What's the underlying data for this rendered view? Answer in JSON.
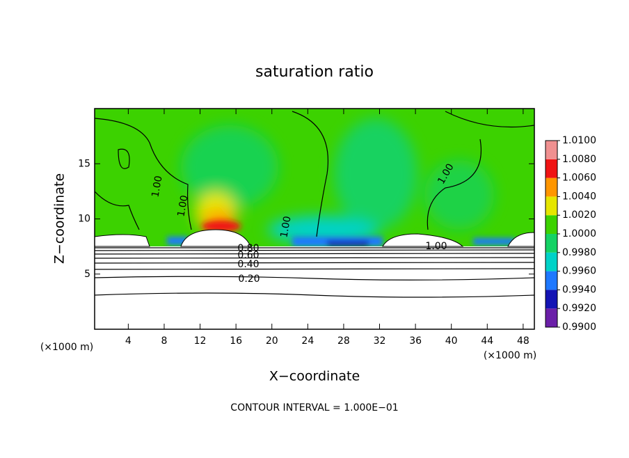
{
  "chart_data": {
    "type": "contour",
    "title": "saturation ratio",
    "xlabel": "X−coordinate",
    "ylabel": "Z−coordinate",
    "x_unit": "(×1000 m)",
    "y_unit": "(×1000 m)",
    "footer": "CONTOUR INTERVAL = 1.000E−01",
    "xlim": [
      0.25,
      49.25
    ],
    "xticks": [
      4,
      8,
      12,
      16,
      20,
      24,
      28,
      32,
      36,
      40,
      44,
      48
    ],
    "ylim": [
      0,
      20
    ],
    "yticks": [
      5,
      10,
      15
    ],
    "contour_labels": [
      "1.00",
      "1.00",
      "1.00",
      "1.00",
      "1.00",
      "0.80",
      "0.60",
      "0.40",
      "0.20"
    ],
    "colorbar": {
      "ticks": [
        {
          "value": 0.99,
          "label": "0.9900"
        },
        {
          "value": 0.992,
          "label": "0.9920"
        },
        {
          "value": 0.994,
          "label": "0.9940"
        },
        {
          "value": 0.996,
          "label": "0.9960"
        },
        {
          "value": 0.998,
          "label": "0.9980"
        },
        {
          "value": 1.0,
          "label": "1.0000"
        },
        {
          "value": 1.002,
          "label": "1.0020"
        },
        {
          "value": 1.004,
          "label": "1.0040"
        },
        {
          "value": 1.006,
          "label": "1.0060"
        },
        {
          "value": 1.008,
          "label": "1.0080"
        },
        {
          "value": 1.01,
          "label": "1.0100"
        }
      ],
      "colors": [
        "#6b1fa8",
        "#1414b4",
        "#1e78ff",
        "#00d2c8",
        "#14d264",
        "#3cd200",
        "#e6e600",
        "#ff9600",
        "#f01414",
        "#f09090"
      ]
    }
  }
}
